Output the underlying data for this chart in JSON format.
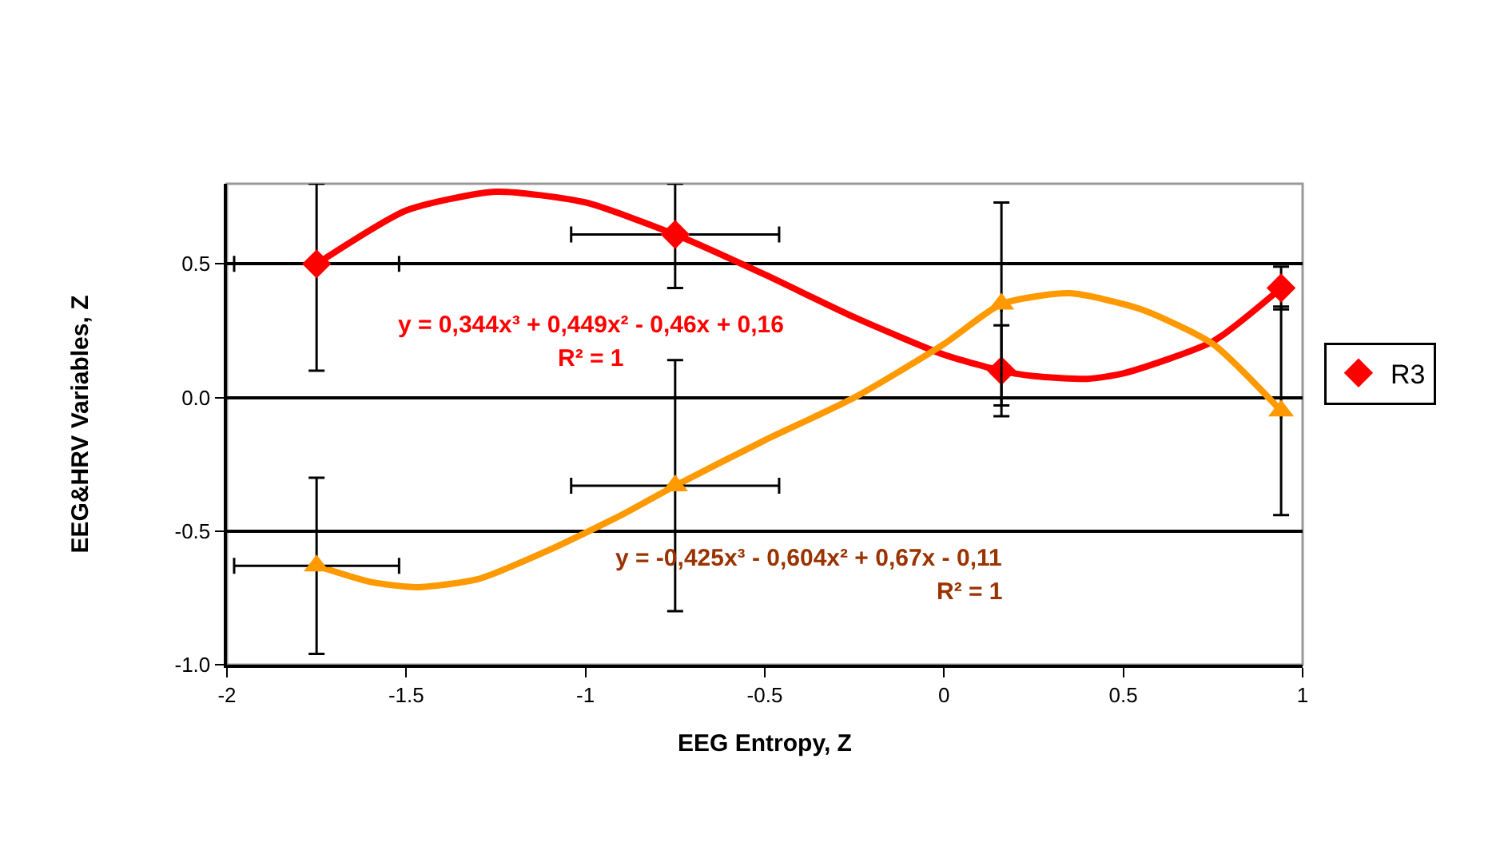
{
  "chart_data": {
    "type": "scatter",
    "xlabel": "EEG Entropy, Z",
    "ylabel": "EEG&HRV Variables, Z",
    "xlim": [
      -2,
      1
    ],
    "xticks": [
      -2,
      -1.5,
      -1,
      -0.5,
      0,
      0.5,
      1
    ],
    "ylim": [
      -1,
      0.8
    ],
    "yticks": [
      {
        "value": -1,
        "label": "-1.0"
      },
      -0.5,
      {
        "value": 0,
        "label": "0.0"
      },
      0.5
    ],
    "grid": "y",
    "legend": "right",
    "series": [
      {
        "name": "R3",
        "marker": "diamond",
        "color": "#ff0000",
        "x": [
          -1.75,
          -0.75,
          0.16,
          0.94
        ],
        "values": [
          0.5,
          0.61,
          0.1,
          0.41
        ],
        "errors": [
          [
            0.1,
            0.8
          ],
          [
            0.41,
            0.8
          ],
          [
            -0.07,
            0.27
          ],
          [
            0.33,
            0.49
          ]
        ],
        "xerrors": [
          [
            -1.98,
            -1.52
          ],
          [
            -1.04,
            -0.46
          ],
          null,
          null
        ]
      },
      {
        "marker": "triangle",
        "color": "#ff9900",
        "x": [
          -1.75,
          -0.75,
          0.16,
          0.94
        ],
        "values": [
          -0.63,
          -0.33,
          0.35,
          -0.05
        ],
        "errors": [
          [
            -0.96,
            -0.3
          ],
          [
            -0.8,
            0.14
          ],
          [
            -0.03,
            0.73
          ],
          [
            -0.44,
            0.34
          ]
        ],
        "xerrors": [
          [
            -1.98,
            -1.52
          ],
          [
            -1.04,
            -0.46
          ],
          null,
          null
        ]
      },
      {
        "type": "line",
        "marker": "none",
        "line_style": "solid",
        "color": "#ff0000",
        "x": [
          -1.75,
          -1.5,
          -1.25,
          -1,
          -0.75,
          -0.5,
          -0.25,
          0,
          0.16,
          0.25,
          0.4,
          0.5,
          0.75,
          0.94
        ],
        "values": [
          0.5,
          0.7,
          0.77,
          0.73,
          0.61,
          0.46,
          0.3,
          0.16,
          0.1,
          0.08,
          0.07,
          0.09,
          0.21,
          0.41
        ]
      },
      {
        "type": "line",
        "marker": "none",
        "line_style": "solid",
        "color": "#ff9900",
        "x": [
          -1.75,
          -1.6,
          -1.47,
          -1.3,
          -1.1,
          -0.9,
          -0.75,
          -0.5,
          -0.25,
          0,
          0.16,
          0.35,
          0.55,
          0.75,
          0.94
        ],
        "values": [
          -0.63,
          -0.69,
          -0.71,
          -0.68,
          -0.57,
          -0.44,
          -0.33,
          -0.16,
          0,
          0.2,
          0.35,
          0.39,
          0.33,
          0.2,
          -0.05
        ]
      }
    ],
    "annotations": [
      "y = 0,344x³ + 0,449x² - 0,46x + 0,16",
      "R² = 1",
      "y = -0,425x³ - 0,604x² + 0,67x - 0,11",
      "R² = 1"
    ]
  }
}
